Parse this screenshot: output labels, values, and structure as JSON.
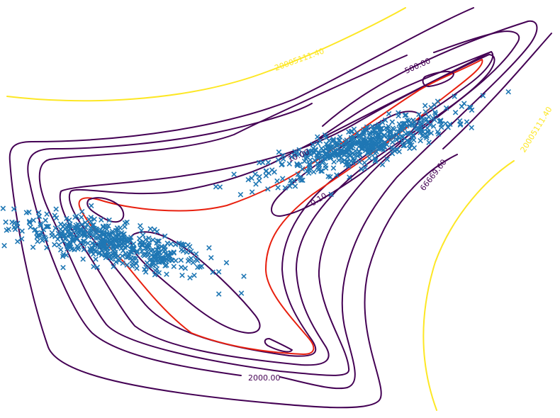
{
  "chart_data": {
    "type": "scatter",
    "plot_kind": "contour with scatter overlay (Gaussian mixture density, negative log-likelihood levels)",
    "title": "",
    "xlabel": "",
    "ylabel": "",
    "axes_visible": false,
    "grid": false,
    "legend": "none",
    "colors": {
      "level_low": "#440154",
      "level_highlight": "#e8200f",
      "level_high": "#fde725",
      "points": "#1f77b4"
    },
    "contour_labels": [
      "0.10",
      "10.00",
      "500.00",
      "2000.00",
      "66669.60",
      "20005111.40",
      "20005111.40"
    ],
    "contour_levels": [
      {
        "level": 0.1,
        "color": "#440154"
      },
      {
        "level": 1.0,
        "color": "#e8200f"
      },
      {
        "level": 10,
        "color": "#440154"
      },
      {
        "level": 100,
        "color": "#440154"
      },
      {
        "level": 500,
        "color": "#440154"
      },
      {
        "level": 2000,
        "color": "#440154"
      },
      {
        "level": 66669.6,
        "color": "#440154"
      },
      {
        "level": 20005111.4,
        "color": "#fde725"
      }
    ],
    "series": [
      {
        "marker": "x",
        "count_approx": 1000,
        "clusters": [
          {
            "center": [
              -10,
              5
            ],
            "cov": [
              [
                18,
                -6.5
              ],
              [
                -6.5,
                4.5
              ]
            ],
            "n": 500
          },
          {
            "center": [
              12,
              19
            ],
            "cov": [
              [
                18,
                9
              ],
              [
                9,
                6.5
              ]
            ],
            "n": 500
          }
        ]
      }
    ]
  }
}
